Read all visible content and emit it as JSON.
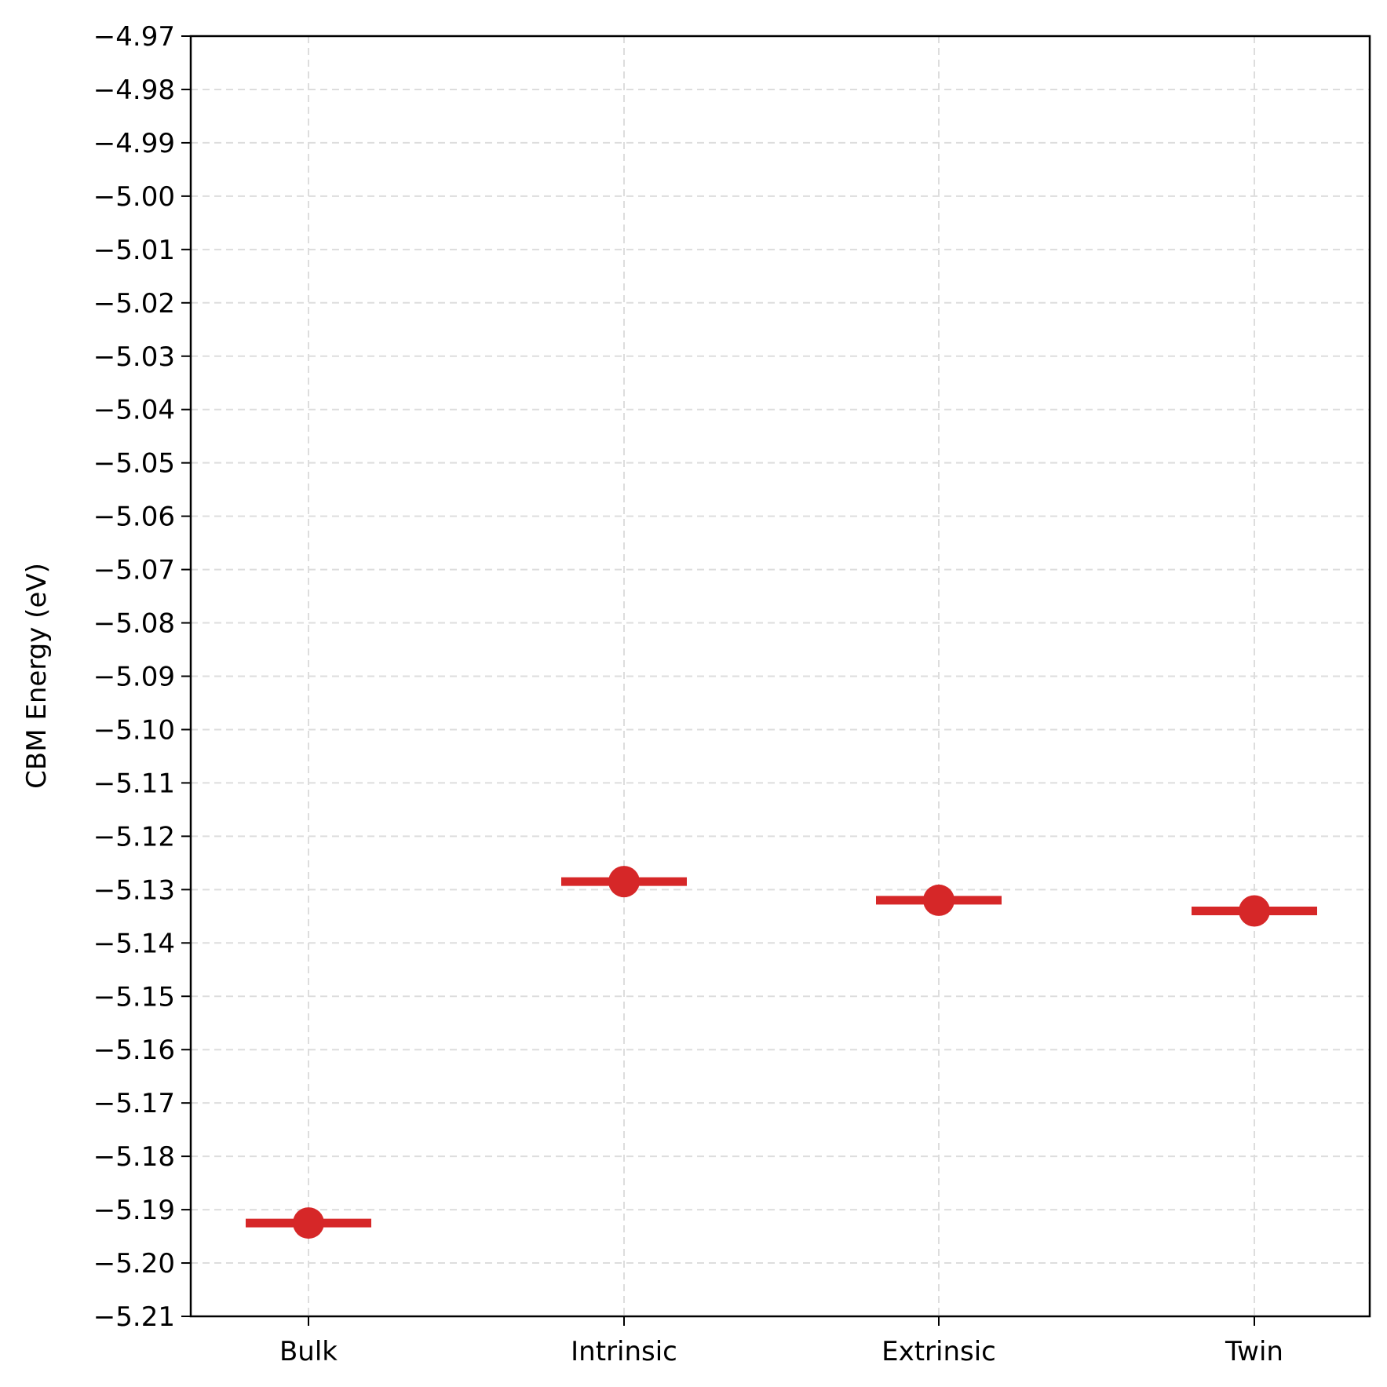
{
  "chart_data": {
    "type": "scatter",
    "title": "",
    "xlabel": "",
    "ylabel": "CBM Energy (eV)",
    "categories": [
      "Bulk",
      "Intrinsic",
      "Extrinsic",
      "Twin"
    ],
    "values": [
      -5.1925,
      -5.1285,
      -5.132,
      -5.134
    ],
    "ylim": [
      -5.21,
      -4.97
    ],
    "yticks": [
      "−4.97",
      "−4.98",
      "−4.99",
      "−5.00",
      "−5.01",
      "−5.02",
      "−5.03",
      "−5.04",
      "−5.05",
      "−5.06",
      "−5.07",
      "−5.08",
      "−5.09",
      "−5.10",
      "−5.11",
      "−5.12",
      "−5.13",
      "−5.14",
      "−5.15",
      "−5.16",
      "−5.17",
      "−5.18",
      "−5.19",
      "−5.20",
      "−5.21"
    ],
    "grid": true,
    "marker": "circle with horizontal level line",
    "color": "#d62728"
  }
}
